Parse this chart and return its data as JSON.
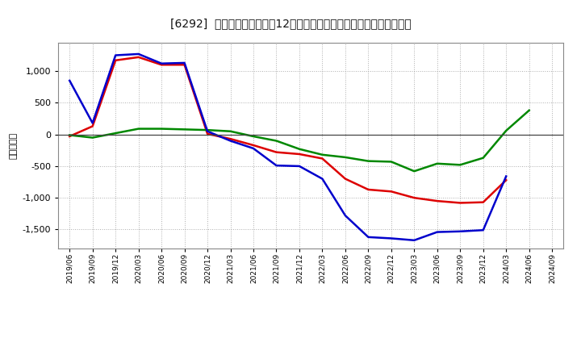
{
  "title": "[6292]  キャッシュフローの12か月移動合計の対前年同期増減額の推移",
  "ylabel": "（百万円）",
  "background_color": "#ffffff",
  "plot_bg_color": "#ffffff",
  "grid_color": "#999999",
  "dates": [
    "2019/06",
    "2019/09",
    "2019/12",
    "2020/03",
    "2020/06",
    "2020/09",
    "2020/12",
    "2021/03",
    "2021/06",
    "2021/09",
    "2021/12",
    "2022/03",
    "2022/06",
    "2022/09",
    "2022/12",
    "2023/03",
    "2023/06",
    "2023/09",
    "2023/12",
    "2024/03",
    "2024/06",
    "2024/09"
  ],
  "eigyo_cf": [
    -30,
    130,
    1170,
    1220,
    1100,
    1100,
    10,
    -70,
    -170,
    -280,
    -310,
    -380,
    -700,
    -870,
    -900,
    -1000,
    -1050,
    -1080,
    -1070,
    -720,
    null,
    null
  ],
  "toshi_cf": [
    -10,
    -50,
    20,
    90,
    90,
    80,
    70,
    50,
    -30,
    -100,
    -230,
    -320,
    -360,
    -420,
    -430,
    -580,
    -460,
    -480,
    -370,
    60,
    380,
    null
  ],
  "free_cf": [
    850,
    180,
    1250,
    1270,
    1120,
    1130,
    50,
    -100,
    -220,
    -490,
    -500,
    -700,
    -1280,
    -1620,
    -1640,
    -1670,
    -1540,
    -1530,
    -1510,
    -660,
    null,
    null
  ],
  "eigyo_color": "#dd0000",
  "toshi_color": "#008800",
  "free_color": "#0000cc",
  "ylim": [
    -1800,
    1450
  ],
  "yticks": [
    -1500,
    -1000,
    -500,
    0,
    500,
    1000
  ]
}
